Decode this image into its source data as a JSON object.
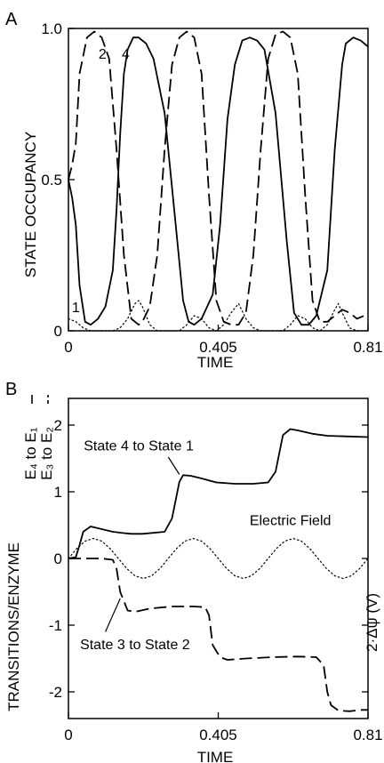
{
  "panel_a": {
    "label": "A",
    "ylabel": "STATE OCCUPANCY",
    "xlabel": "TIME",
    "yticks": [
      "0",
      "0.5",
      "1.0"
    ],
    "xticks": [
      "0",
      "0.405",
      "0.81"
    ],
    "curve_labels": [
      "1",
      "2",
      "4"
    ]
  },
  "panel_b": {
    "label": "B",
    "ylabel": "TRANSITIONS/ENZYME",
    "ylabel_transitions": [
      "E₄ to E₁",
      "E₃ to E₂"
    ],
    "ylabel_right": "2·Δψ (V)",
    "xlabel": "TIME",
    "yticks": [
      "2",
      "1",
      "0",
      "-1",
      "-2"
    ],
    "xticks": [
      "0",
      "0.405",
      "0.81"
    ],
    "annotations": [
      "State 4 to State 1",
      "Electric Field",
      "State 3 to State 2"
    ]
  },
  "chart_data": [
    {
      "type": "line",
      "title": "",
      "xlabel": "TIME",
      "ylabel": "STATE OCCUPANCY",
      "xlim": [
        0,
        0.81
      ],
      "ylim": [
        0,
        1.0
      ],
      "series": [
        {
          "name": "4",
          "style": "solid",
          "x": [
            0,
            0.01,
            0.02,
            0.03,
            0.045,
            0.06,
            0.08,
            0.1,
            0.12,
            0.13,
            0.14,
            0.15,
            0.16,
            0.175,
            0.19,
            0.21,
            0.23,
            0.26,
            0.29,
            0.31,
            0.325,
            0.34,
            0.36,
            0.39,
            0.41,
            0.43,
            0.45,
            0.47,
            0.49,
            0.51,
            0.53,
            0.56,
            0.59,
            0.61,
            0.63,
            0.65,
            0.67,
            0.7,
            0.72,
            0.74,
            0.75,
            0.77,
            0.79,
            0.81
          ],
          "y": [
            0.5,
            0.44,
            0.35,
            0.15,
            0.03,
            0.02,
            0.04,
            0.08,
            0.2,
            0.4,
            0.65,
            0.85,
            0.93,
            0.97,
            0.97,
            0.95,
            0.9,
            0.72,
            0.35,
            0.1,
            0.03,
            0.02,
            0.04,
            0.12,
            0.35,
            0.7,
            0.88,
            0.96,
            0.97,
            0.96,
            0.93,
            0.72,
            0.3,
            0.06,
            0.02,
            0.02,
            0.05,
            0.2,
            0.6,
            0.88,
            0.95,
            0.97,
            0.96,
            0.94
          ]
        },
        {
          "name": "2",
          "style": "dashed",
          "x": [
            0,
            0.01,
            0.02,
            0.03,
            0.05,
            0.07,
            0.09,
            0.11,
            0.13,
            0.15,
            0.17,
            0.19,
            0.2,
            0.22,
            0.24,
            0.26,
            0.28,
            0.3,
            0.32,
            0.34,
            0.36,
            0.38,
            0.4,
            0.42,
            0.44,
            0.46,
            0.48,
            0.5,
            0.52,
            0.54,
            0.56,
            0.58,
            0.6,
            0.62,
            0.64,
            0.66,
            0.68,
            0.7,
            0.72,
            0.74,
            0.76,
            0.78,
            0.8,
            0.81
          ],
          "y": [
            0.5,
            0.55,
            0.62,
            0.85,
            0.97,
            0.99,
            0.97,
            0.9,
            0.6,
            0.25,
            0.04,
            0.02,
            0.03,
            0.08,
            0.25,
            0.6,
            0.88,
            0.97,
            0.99,
            0.97,
            0.85,
            0.45,
            0.1,
            0.03,
            0.02,
            0.02,
            0.06,
            0.25,
            0.6,
            0.9,
            0.98,
            0.99,
            0.97,
            0.85,
            0.45,
            0.1,
            0.03,
            0.03,
            0.05,
            0.07,
            0.06,
            0.04,
            0.05,
            0.05
          ]
        },
        {
          "name": "1",
          "style": "dotted",
          "x": [
            0,
            0.02,
            0.04,
            0.06,
            0.08,
            0.1,
            0.12,
            0.14,
            0.16,
            0.18,
            0.19,
            0.2,
            0.22,
            0.24,
            0.26,
            0.28,
            0.3,
            0.32,
            0.34,
            0.36,
            0.38,
            0.4,
            0.42,
            0.44,
            0.46,
            0.48,
            0.5,
            0.52,
            0.54,
            0.56,
            0.58,
            0.6,
            0.62,
            0.64,
            0.66,
            0.68,
            0.7,
            0.72,
            0.73,
            0.74,
            0.76,
            0.78,
            0.8,
            0.81
          ],
          "y": [
            0.04,
            0.03,
            0.01,
            0.0,
            0.0,
            0.0,
            0.0,
            0.01,
            0.04,
            0.09,
            0.1,
            0.08,
            0.02,
            0.0,
            0.0,
            0.0,
            0.0,
            0.02,
            0.05,
            0.04,
            0.01,
            0.0,
            0.02,
            0.06,
            0.09,
            0.04,
            0.01,
            0.0,
            0.0,
            0.0,
            0.0,
            0.02,
            0.05,
            0.04,
            0.01,
            0.0,
            0.02,
            0.07,
            0.09,
            0.06,
            0.01,
            0.0,
            0.0,
            0.0
          ]
        }
      ]
    },
    {
      "type": "line",
      "title": "",
      "xlabel": "TIME",
      "ylabel": "TRANSITIONS/ENZYME",
      "xlim": [
        0,
        0.81
      ],
      "ylim": [
        -2.4,
        2.4
      ],
      "annotations": [
        "State 4 to State 1",
        "Electric Field",
        "State 3 to State 2"
      ],
      "series": [
        {
          "name": "State 4 to State 1",
          "style": "solid",
          "x": [
            0,
            0.02,
            0.03,
            0.04,
            0.06,
            0.09,
            0.12,
            0.15,
            0.17,
            0.2,
            0.26,
            0.28,
            0.3,
            0.31,
            0.33,
            0.36,
            0.4,
            0.45,
            0.5,
            0.54,
            0.56,
            0.58,
            0.6,
            0.62,
            0.66,
            0.7,
            0.75,
            0.81
          ],
          "y": [
            0.0,
            0.02,
            0.2,
            0.4,
            0.48,
            0.44,
            0.4,
            0.38,
            0.37,
            0.37,
            0.4,
            0.6,
            1.15,
            1.25,
            1.24,
            1.2,
            1.14,
            1.12,
            1.12,
            1.14,
            1.3,
            1.85,
            1.94,
            1.92,
            1.87,
            1.84,
            1.83,
            1.82
          ]
        },
        {
          "name": "State 3 to State 2",
          "style": "dashed",
          "x": [
            0,
            0.05,
            0.09,
            0.12,
            0.13,
            0.14,
            0.16,
            0.18,
            0.22,
            0.28,
            0.31,
            0.34,
            0.37,
            0.38,
            0.39,
            0.41,
            0.43,
            0.48,
            0.55,
            0.62,
            0.67,
            0.69,
            0.7,
            0.71,
            0.73,
            0.76,
            0.79,
            0.81
          ],
          "y": [
            0.0,
            0.0,
            0.0,
            -0.02,
            -0.15,
            -0.5,
            -0.78,
            -0.8,
            -0.75,
            -0.72,
            -0.72,
            -0.72,
            -0.73,
            -0.85,
            -1.3,
            -1.48,
            -1.52,
            -1.5,
            -1.48,
            -1.47,
            -1.48,
            -1.6,
            -2.0,
            -2.2,
            -2.28,
            -2.29,
            -2.27,
            -2.27
          ]
        },
        {
          "name": "Electric Field",
          "style": "dotted",
          "amplitude": 0.3,
          "period": 0.27,
          "x": [
            0,
            0.0225,
            0.045,
            0.0675,
            0.09,
            0.1125,
            0.135,
            0.1575,
            0.18,
            0.2025,
            0.225,
            0.2475,
            0.27,
            0.2925,
            0.315,
            0.3375,
            0.36,
            0.3825,
            0.405,
            0.4275,
            0.45,
            0.4725,
            0.495,
            0.5175,
            0.54,
            0.5625,
            0.585,
            0.6075,
            0.63,
            0.6525,
            0.675,
            0.6975,
            0.72,
            0.7425,
            0.765,
            0.7875,
            0.81
          ],
          "y": [
            0.0,
            0.15,
            0.26,
            0.3,
            0.26,
            0.15,
            0.0,
            -0.15,
            -0.26,
            -0.3,
            -0.26,
            -0.15,
            0.0,
            0.15,
            0.26,
            0.3,
            0.26,
            0.15,
            0.0,
            -0.15,
            -0.26,
            -0.3,
            -0.26,
            -0.15,
            0.0,
            0.15,
            0.26,
            0.3,
            0.26,
            0.15,
            0.0,
            -0.15,
            -0.26,
            -0.3,
            -0.26,
            -0.15,
            0.0
          ]
        }
      ]
    }
  ]
}
